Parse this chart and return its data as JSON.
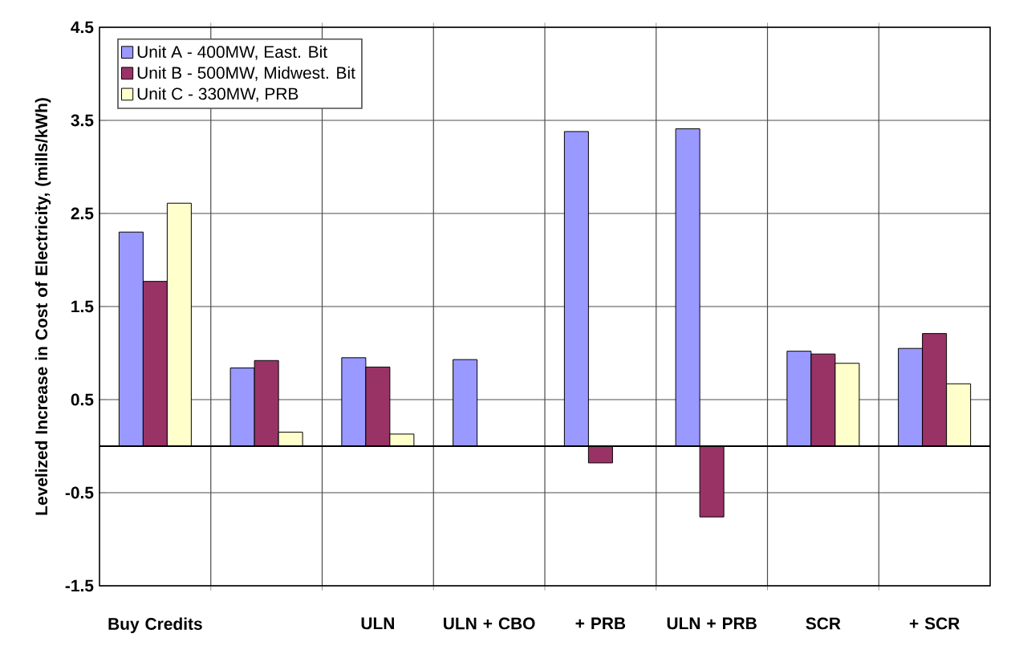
{
  "chart_data": {
    "type": "bar",
    "ylabel": "Levelized Increase in Cost of Electricity, (mills/kWh)",
    "categories": [
      "Buy Credits",
      null,
      "ULN",
      "ULN + CBO",
      "+ PRB",
      "ULN + PRB",
      "SCR",
      "+ SCR"
    ],
    "series": [
      {
        "name": "Unit A - 400MW, East. Bit",
        "color": "#9999ff",
        "values": [
          2.3,
          0.84,
          0.95,
          0.93,
          3.38,
          3.41,
          1.02,
          1.05
        ]
      },
      {
        "name": "Unit B - 500MW, Midwest. Bit",
        "color": "#993366",
        "values": [
          1.77,
          0.92,
          0.85,
          null,
          -0.18,
          -0.76,
          0.99,
          1.21
        ]
      },
      {
        "name": "Unit C - 330MW, PRB",
        "color": "#ffffcc",
        "values": [
          2.61,
          0.15,
          0.13,
          null,
          null,
          null,
          0.89,
          0.67
        ]
      }
    ],
    "ylim": [
      -1.5,
      4.5
    ],
    "yticks": [
      -1.5,
      -0.5,
      0.5,
      1.5,
      2.5,
      3.5,
      4.5
    ],
    "grid": true,
    "legend": "top left"
  }
}
